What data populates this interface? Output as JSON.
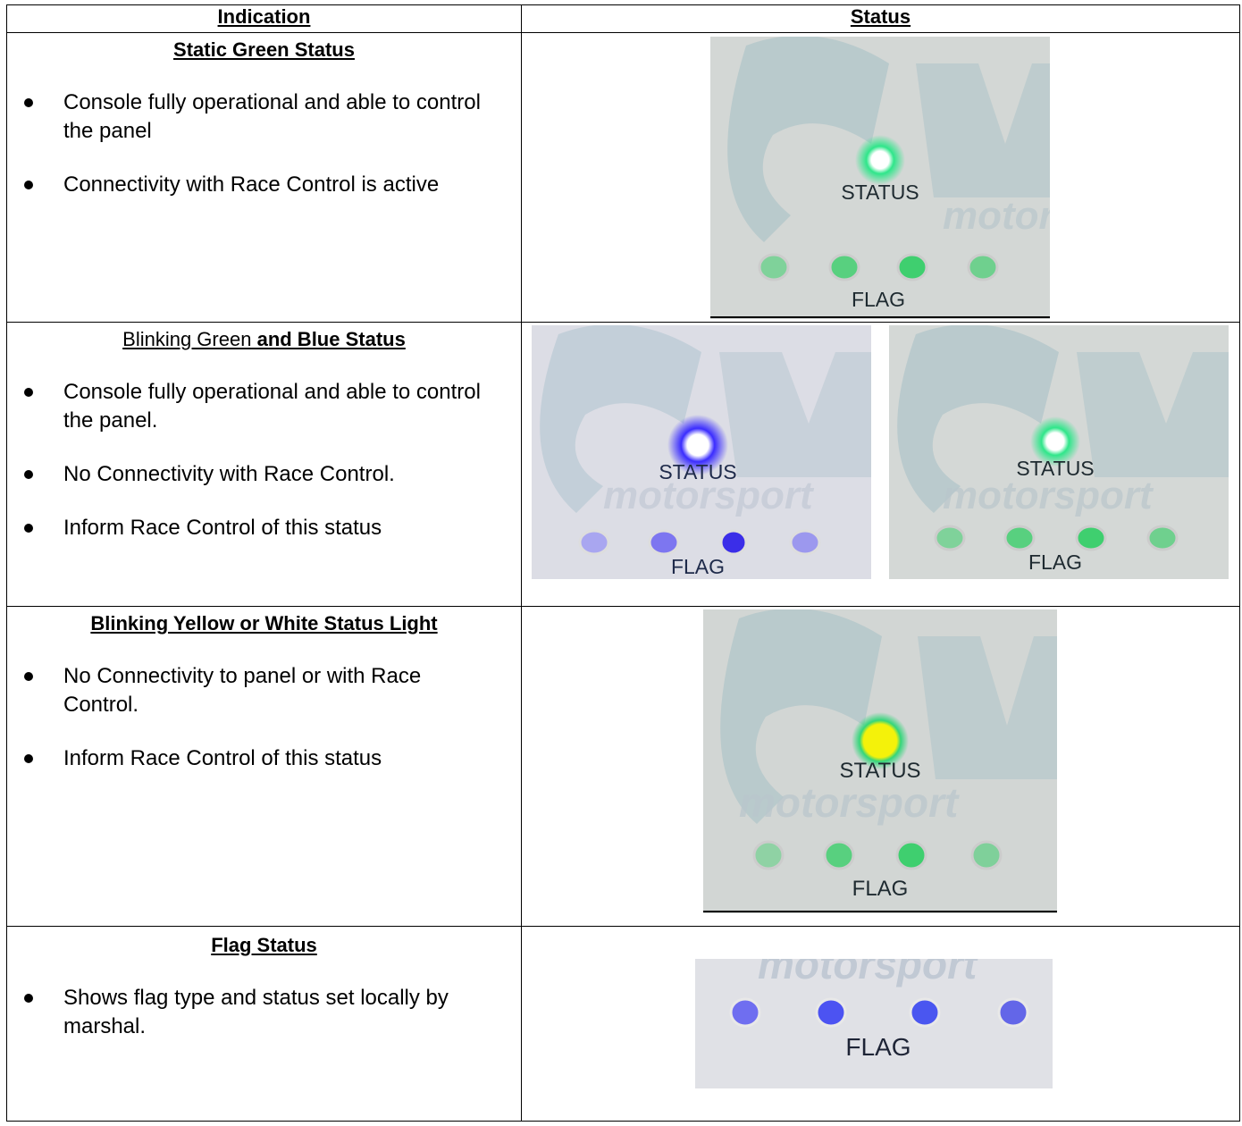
{
  "header": {
    "indication": "Indication",
    "status": "Status"
  },
  "rows": [
    {
      "title": "Static Green Status",
      "bullets": [
        "Console fully operational and able to control the panel",
        "Connectivity with Race Control is active"
      ],
      "photo": {
        "status_label": "STATUS",
        "flag_label": "FLAG",
        "led_color": "#2fe68a"
      }
    },
    {
      "title_plain": "Blinking Green",
      "title_bold": " and Blue Status",
      "bullets": [
        "Console fully operational and able to control the panel.",
        "No Connectivity with Race Control.",
        "Inform Race Control of this status"
      ],
      "photos": [
        {
          "status_label": "STATUS",
          "flag_label": "FLAG",
          "led_color": "#3a2cff"
        },
        {
          "status_label": "STATUS",
          "flag_label": "FLAG",
          "led_color": "#2fe68a"
        }
      ]
    },
    {
      "title": "Blinking Yellow or White Status Light",
      "bullets": [
        "No Connectivity to panel or with Race Control.",
        "Inform Race Control of this status"
      ],
      "photo": {
        "status_label": "STATUS",
        "flag_label": "FLAG",
        "led_color": "#f4f20a"
      }
    },
    {
      "title": "Flag Status",
      "bullets": [
        "Shows flag type and status set locally by marshal."
      ],
      "photo": {
        "flag_label": "FLAG",
        "led_color": "#5a5cf0"
      }
    }
  ]
}
